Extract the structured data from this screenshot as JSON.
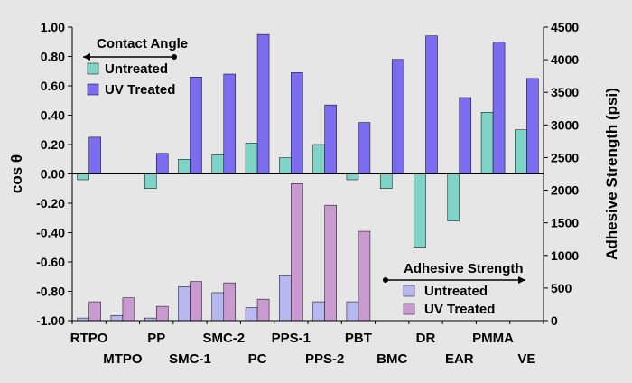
{
  "chart_data": {
    "type": "bar",
    "categories": [
      "RTPO",
      "MTPO",
      "PP",
      "SMC-1",
      "SMC-2",
      "PC",
      "PPS-1",
      "PPS-2",
      "PBT",
      "BMC",
      "DR",
      "EAR",
      "PMMA",
      "VE"
    ],
    "left_axis": {
      "label": "cos θ",
      "ylim": [
        -1.0,
        1.0
      ],
      "ticks": [
        "1.00",
        "0.80",
        "0.60",
        "0.40",
        "0.20",
        "0.00",
        "-0.20",
        "-0.40",
        "-0.60",
        "-0.80",
        "-1.00"
      ]
    },
    "right_axis": {
      "label": "Adhesive Strength (psi)",
      "ylim": [
        0,
        4500
      ],
      "ticks": [
        "4500",
        "4000",
        "3500",
        "3000",
        "2500",
        "2000",
        "1500",
        "1000",
        "500",
        "0"
      ]
    },
    "contact_angle": {
      "legend_title": "Contact Angle",
      "series": [
        {
          "name": "Untreated",
          "color": "#7fd4c8",
          "values": [
            -0.04,
            null,
            -0.1,
            0.1,
            0.13,
            0.21,
            0.11,
            0.2,
            -0.04,
            -0.1,
            -0.5,
            -0.32,
            0.42,
            0.3
          ]
        },
        {
          "name": "UV Treated",
          "color": "#7b6cf0",
          "values": [
            0.25,
            null,
            0.14,
            0.66,
            0.68,
            0.95,
            0.69,
            0.47,
            0.35,
            0.78,
            0.94,
            0.52,
            0.9,
            0.65
          ]
        }
      ]
    },
    "adhesive_strength": {
      "legend_title": "Adhesive Strength",
      "series": [
        {
          "name": "Untreated",
          "color": "#b8b8f0",
          "values": [
            40,
            80,
            40,
            520,
            430,
            200,
            700,
            290,
            290,
            null,
            null,
            null,
            null,
            null
          ]
        },
        {
          "name": "UV Treated",
          "color": "#c89ad0",
          "values": [
            290,
            350,
            220,
            600,
            580,
            330,
            2100,
            1770,
            1370,
            null,
            null,
            null,
            null,
            null
          ]
        }
      ]
    }
  }
}
